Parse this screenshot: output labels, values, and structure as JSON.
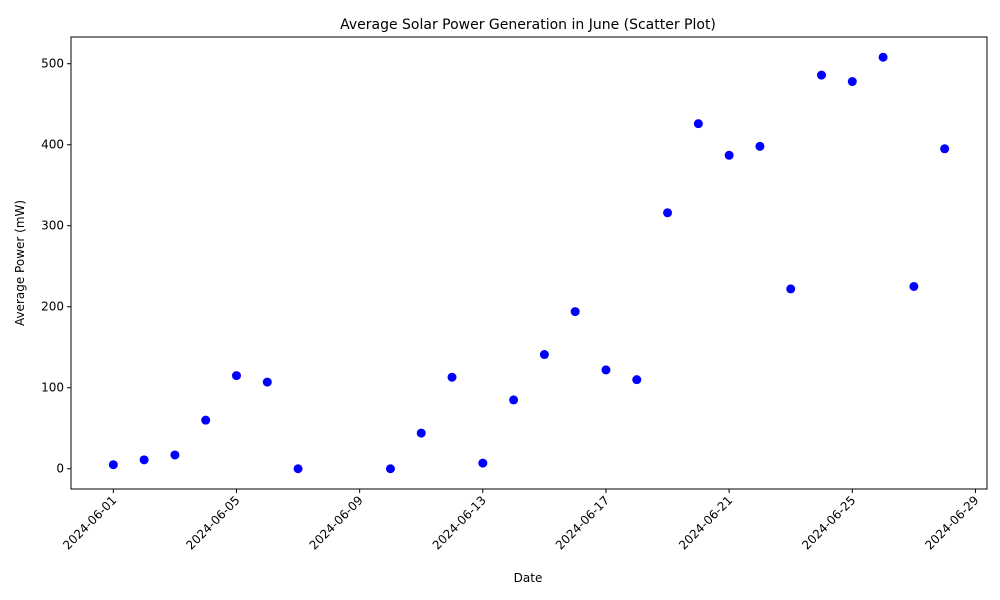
{
  "chart_data": {
    "type": "scatter",
    "title": "Average Solar Power Generation in June (Scatter Plot)",
    "xlabel": "Date",
    "ylabel": "Average Power (mW)",
    "x_tick_labels": [
      "2024-06-01",
      "2024-06-05",
      "2024-06-09",
      "2024-06-13",
      "2024-06-17",
      "2024-06-21",
      "2024-06-25",
      "2024-06-29"
    ],
    "y_ticks": [
      0,
      100,
      200,
      300,
      400,
      500
    ],
    "xlim": [
      "2024-05-30 15:00",
      "2024-06-29 09:00"
    ],
    "ylim": [
      -25,
      533
    ],
    "grid": false,
    "marker_color": "#0000ff",
    "x": [
      "2024-06-01",
      "2024-06-02",
      "2024-06-03",
      "2024-06-04",
      "2024-06-05",
      "2024-06-06",
      "2024-06-07",
      "2024-06-10",
      "2024-06-11",
      "2024-06-12",
      "2024-06-13",
      "2024-06-14",
      "2024-06-15",
      "2024-06-16",
      "2024-06-17",
      "2024-06-18",
      "2024-06-19",
      "2024-06-20",
      "2024-06-21",
      "2024-06-22",
      "2024-06-23",
      "2024-06-24",
      "2024-06-25",
      "2024-06-26",
      "2024-06-27",
      "2024-06-28"
    ],
    "y": [
      5,
      11,
      17,
      60,
      115,
      107,
      0,
      0,
      44,
      113,
      7,
      85,
      141,
      194,
      122,
      110,
      316,
      426,
      387,
      398,
      222,
      486,
      478,
      508,
      225,
      395
    ]
  }
}
